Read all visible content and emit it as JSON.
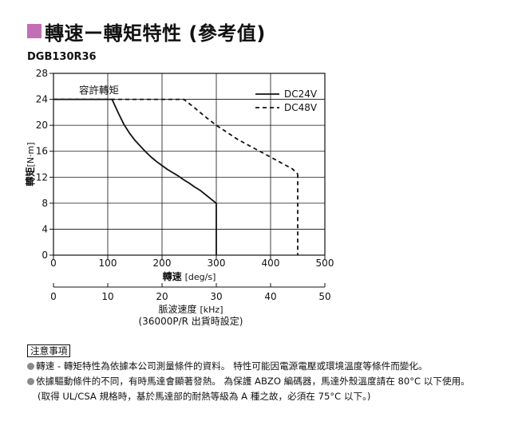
{
  "header": {
    "title": "轉速ー轉矩特性 (參考值)",
    "marker_color": "#c36fb6"
  },
  "model": "DGB130R36",
  "chart_data": {
    "type": "line",
    "x": {
      "label": "轉速",
      "unit": "[deg/s]",
      "ticks": [
        0,
        100,
        200,
        300,
        400,
        500
      ],
      "range": [
        0,
        500
      ]
    },
    "x2": {
      "label": "脈波速度",
      "unit": "[kHz]",
      "ticks": [
        0,
        10,
        20,
        30,
        40,
        50
      ],
      "range": [
        0,
        50
      ],
      "note": "(36000P/R 出貨時設定)"
    },
    "y": {
      "label": "轉矩",
      "unit": "[N·m]",
      "ticks": [
        0,
        4,
        8,
        12,
        16,
        20,
        24,
        28
      ],
      "range": [
        0,
        28
      ]
    },
    "grid": true,
    "annotation": "容許轉矩",
    "legend_position": "top-right",
    "series": [
      {
        "name": "DC24V",
        "style": "solid",
        "color": "#111111",
        "x": [
          0,
          108,
          120,
          130,
          140,
          150,
          160,
          170,
          180,
          190,
          200,
          210,
          220,
          230,
          240,
          250,
          260,
          270,
          300
        ],
        "y": [
          24,
          24,
          21.8,
          20.1,
          18.8,
          17.7,
          16.8,
          15.9,
          15.1,
          14.4,
          13.8,
          13.2,
          12.7,
          12.2,
          11.6,
          11.1,
          10.5,
          10,
          8
        ]
      },
      {
        "name": "DC48V",
        "style": "dashed",
        "color": "#111111",
        "x": [
          0,
          240,
          260,
          280,
          300,
          320,
          340,
          360,
          380,
          400,
          420,
          440,
          450
        ],
        "y": [
          24,
          24,
          22.7,
          21.3,
          20,
          18.9,
          17.8,
          16.9,
          16,
          15.1,
          14.2,
          13.3,
          12.5
        ]
      }
    ],
    "limits": [
      {
        "series": "DC24V",
        "x": 300,
        "y_from": 8,
        "y_to": 0
      },
      {
        "series": "DC48V",
        "x": 450,
        "y_from": 12.5,
        "y_to": 0
      }
    ]
  },
  "notes": {
    "title": "注意事項",
    "lines": [
      "轉速 - 轉矩特性為依據本公司測量條件的資料。 特性可能因電源電壓或環境溫度等條件而變化。",
      "依據驅動條件的不同，有時馬達會顯著發熱。 為保護 ABZO 編碼器，馬達外殼溫度請在 80°C 以下使用。",
      "(取得 UL/CSA 規格時，基於馬達部的耐熱等級為 A 種之故，必須在 75°C 以下。)"
    ]
  }
}
